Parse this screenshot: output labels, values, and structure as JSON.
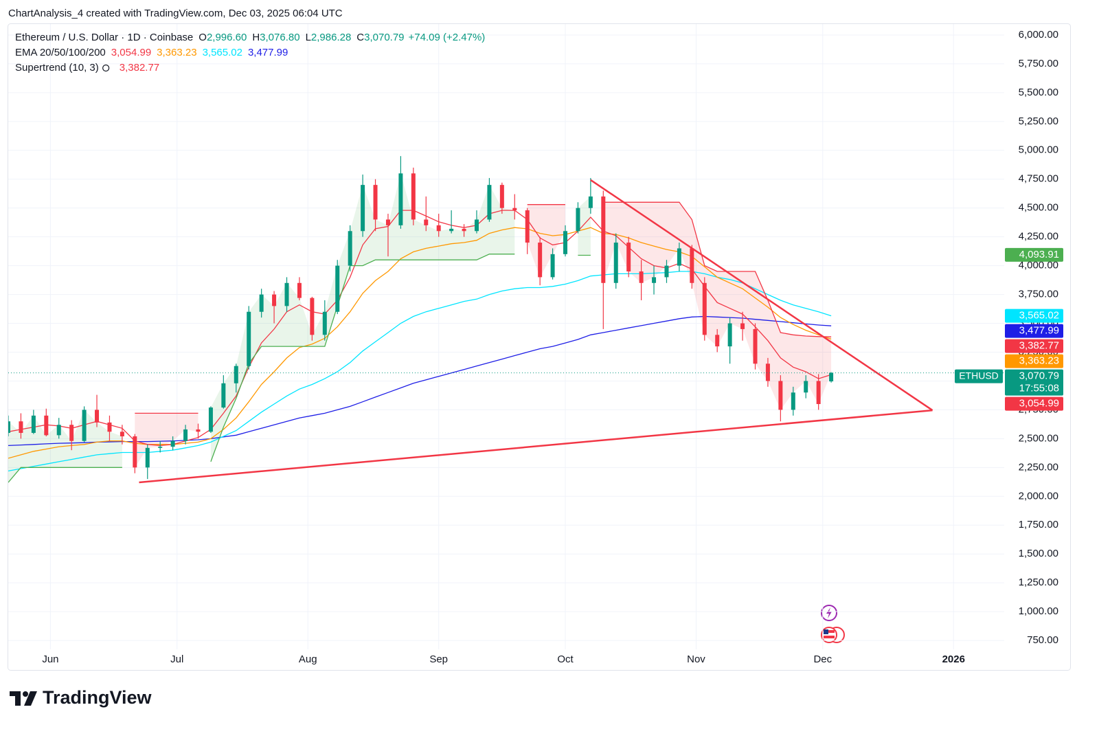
{
  "header": {
    "title": "ChartAnalysis_4 created with TradingView.com, Dec 03, 2025 06:04 UTC"
  },
  "footer": {
    "logo": "TradingView"
  },
  "chart_data": {
    "type": "candlestick",
    "legend": {
      "symbol_line": "Ethereum / U.S. Dollar · 1D · Coinbase",
      "ohlc": [
        {
          "key": "O",
          "value": "2,996.60"
        },
        {
          "key": "H",
          "value": "3,076.80"
        },
        {
          "key": "L",
          "value": "2,986.28"
        },
        {
          "key": "C",
          "value": "3,070.79"
        }
      ],
      "change": "+74.09 (+2.47%)"
    },
    "x": [
      "2025-05-22",
      "2025-05-25",
      "2025-05-28",
      "2025-05-31",
      "2025-06-03",
      "2025-06-06",
      "2025-06-09",
      "2025-06-12",
      "2025-06-15",
      "2025-06-18",
      "2025-06-21",
      "2025-06-24",
      "2025-06-27",
      "2025-06-30",
      "2025-07-03",
      "2025-07-06",
      "2025-07-09",
      "2025-07-12",
      "2025-07-15",
      "2025-07-18",
      "2025-07-21",
      "2025-07-24",
      "2025-07-27",
      "2025-07-30",
      "2025-08-02",
      "2025-08-05",
      "2025-08-08",
      "2025-08-11",
      "2025-08-14",
      "2025-08-17",
      "2025-08-20",
      "2025-08-23",
      "2025-08-26",
      "2025-08-29",
      "2025-09-01",
      "2025-09-04",
      "2025-09-07",
      "2025-09-10",
      "2025-09-13",
      "2025-09-16",
      "2025-09-19",
      "2025-09-22",
      "2025-09-25",
      "2025-09-28",
      "2025-10-01",
      "2025-10-04",
      "2025-10-07",
      "2025-10-10",
      "2025-10-13",
      "2025-10-16",
      "2025-10-19",
      "2025-10-22",
      "2025-10-25",
      "2025-10-28",
      "2025-10-31",
      "2025-11-03",
      "2025-11-06",
      "2025-11-09",
      "2025-11-12",
      "2025-11-15",
      "2025-11-18",
      "2025-11-21",
      "2025-11-24",
      "2025-11-27",
      "2025-11-30",
      "2025-12-03"
    ],
    "open": [
      2550,
      2650,
      2550,
      2700,
      2530,
      2620,
      2480,
      2750,
      2640,
      2560,
      2520,
      2250,
      2420,
      2430,
      2480,
      2580,
      2560,
      2770,
      2980,
      3130,
      3600,
      3750,
      3650,
      3850,
      3720,
      3400,
      3600,
      4000,
      4300,
      4700,
      4400,
      4350,
      4800,
      4400,
      4350,
      4300,
      4320,
      4300,
      4400,
      4700,
      4500,
      4480,
      4200,
      3900,
      4100,
      4300,
      4500,
      4600,
      3850,
      4200,
      3950,
      3850,
      3900,
      4000,
      4150,
      3850,
      3400,
      3300,
      3500,
      3450,
      3150,
      3000,
      2750,
      2900,
      3000,
      2996.6
    ],
    "high": [
      2700,
      2720,
      2750,
      2760,
      2680,
      2660,
      2780,
      2880,
      2700,
      2620,
      2540,
      2450,
      2480,
      2520,
      2620,
      2630,
      2780,
      3050,
      3150,
      3650,
      3800,
      3780,
      3900,
      3900,
      3730,
      3700,
      4050,
      4350,
      4790,
      4750,
      4450,
      4950,
      4850,
      4600,
      4450,
      4480,
      4360,
      4480,
      4760,
      4720,
      4620,
      4500,
      4250,
      4150,
      4350,
      4550,
      4760,
      4650,
      4280,
      4250,
      4050,
      4000,
      4050,
      4200,
      4180,
      3900,
      3450,
      3550,
      3600,
      3500,
      3200,
      3050,
      2950,
      3050,
      3060,
      3076.8
    ],
    "low": [
      2520,
      2500,
      2540,
      2520,
      2500,
      2400,
      2470,
      2600,
      2480,
      2450,
      2200,
      2150,
      2380,
      2400,
      2450,
      2500,
      2550,
      2760,
      2900,
      3100,
      3550,
      3500,
      3600,
      3700,
      3350,
      3350,
      3580,
      3950,
      4250,
      4300,
      4080,
      4320,
      4350,
      4300,
      4250,
      4280,
      4250,
      4280,
      4380,
      4450,
      4400,
      4100,
      3830,
      3880,
      4080,
      4280,
      4450,
      3450,
      3800,
      3900,
      3700,
      3750,
      3850,
      3950,
      3800,
      3350,
      3250,
      3150,
      3350,
      3100,
      2950,
      2650,
      2700,
      2850,
      2750,
      2986.28
    ],
    "close": [
      2650,
      2550,
      2700,
      2530,
      2620,
      2480,
      2750,
      2640,
      2560,
      2520,
      2250,
      2420,
      2430,
      2480,
      2580,
      2560,
      2770,
      2980,
      3130,
      3600,
      3750,
      3650,
      3850,
      3720,
      3400,
      3600,
      4000,
      4300,
      4700,
      4400,
      4350,
      4800,
      4400,
      4350,
      4300,
      4320,
      4300,
      4400,
      4700,
      4500,
      4480,
      4200,
      3900,
      4100,
      4300,
      4500,
      4600,
      3850,
      4200,
      3950,
      3850,
      3900,
      4000,
      4150,
      3850,
      3400,
      3300,
      3500,
      3450,
      3150,
      3000,
      2750,
      2900,
      3000,
      2800,
      3070.79
    ],
    "up_color": "#089981",
    "down_color": "#f23645",
    "ema": {
      "label": "EMA 20/50/100/200",
      "lines": [
        {
          "color": "#f23645",
          "value_label": "3,054.99",
          "values": [
            2560,
            2580,
            2600,
            2620,
            2610,
            2590,
            2620,
            2650,
            2620,
            2590,
            2480,
            2450,
            2440,
            2450,
            2480,
            2510,
            2580,
            2720,
            2870,
            3120,
            3330,
            3450,
            3600,
            3660,
            3600,
            3580,
            3700,
            3900,
            4180,
            4320,
            4340,
            4480,
            4480,
            4430,
            4380,
            4350,
            4330,
            4350,
            4450,
            4480,
            4480,
            4400,
            4240,
            4180,
            4200,
            4300,
            4420,
            4300,
            4260,
            4160,
            4060,
            4000,
            3980,
            4020,
            3970,
            3820,
            3680,
            3630,
            3580,
            3470,
            3350,
            3200,
            3120,
            3080,
            3020,
            3054.99
          ]
        },
        {
          "color": "#ff9800",
          "value_label": "3,363.23",
          "values": [
            2330,
            2360,
            2390,
            2410,
            2430,
            2440,
            2450,
            2470,
            2480,
            2480,
            2460,
            2450,
            2450,
            2450,
            2460,
            2470,
            2500,
            2580,
            2680,
            2820,
            2970,
            3080,
            3200,
            3290,
            3320,
            3370,
            3470,
            3600,
            3760,
            3870,
            3950,
            4060,
            4120,
            4150,
            4170,
            4190,
            4200,
            4220,
            4280,
            4310,
            4330,
            4320,
            4280,
            4260,
            4270,
            4300,
            4330,
            4280,
            4270,
            4240,
            4200,
            4170,
            4140,
            4120,
            4080,
            3990,
            3900,
            3850,
            3800,
            3720,
            3640,
            3550,
            3490,
            3440,
            3400,
            3363.23
          ]
        },
        {
          "color": "#00e5ff",
          "value_label": "3,565.02",
          "values": [
            2220,
            2240,
            2260,
            2280,
            2300,
            2320,
            2340,
            2360,
            2370,
            2380,
            2380,
            2380,
            2390,
            2400,
            2420,
            2440,
            2470,
            2520,
            2570,
            2650,
            2730,
            2800,
            2870,
            2930,
            2970,
            3020,
            3080,
            3160,
            3260,
            3340,
            3420,
            3500,
            3560,
            3600,
            3630,
            3660,
            3690,
            3710,
            3750,
            3780,
            3800,
            3810,
            3810,
            3820,
            3840,
            3870,
            3910,
            3920,
            3930,
            3930,
            3930,
            3935,
            3940,
            3950,
            3950,
            3930,
            3900,
            3880,
            3850,
            3800,
            3750,
            3700,
            3660,
            3630,
            3600,
            3565.02
          ]
        },
        {
          "color": "#1e1ee6",
          "value_label": "3,477.99",
          "values": [
            2440,
            2445,
            2450,
            2455,
            2460,
            2462,
            2465,
            2470,
            2472,
            2475,
            2475,
            2475,
            2478,
            2480,
            2485,
            2490,
            2500,
            2515,
            2530,
            2560,
            2590,
            2620,
            2650,
            2680,
            2700,
            2720,
            2750,
            2780,
            2820,
            2860,
            2900,
            2940,
            2980,
            3010,
            3040,
            3070,
            3100,
            3130,
            3160,
            3190,
            3220,
            3250,
            3280,
            3300,
            3330,
            3360,
            3400,
            3420,
            3440,
            3460,
            3480,
            3500,
            3520,
            3540,
            3555,
            3560,
            3555,
            3550,
            3545,
            3535,
            3525,
            3515,
            3505,
            3495,
            3485,
            3477.99
          ]
        }
      ]
    },
    "supertrend": {
      "label": "Supertrend (10, 3)",
      "value_label": "3,382.77",
      "up": {
        "color": "#4caf50",
        "values": [
          2120,
          2250,
          2250,
          2250,
          2250,
          2250,
          2250,
          2250,
          2250,
          2250,
          null,
          null,
          null,
          null,
          null,
          null,
          2300,
          2600,
          2850,
          3150,
          3300,
          3300,
          3300,
          3300,
          3300,
          3300,
          3650,
          4000,
          4000,
          4050,
          4050,
          4050,
          4050,
          4050,
          4050,
          4050,
          4050,
          4050,
          4100,
          4100,
          4100,
          null,
          null,
          null,
          null,
          4090,
          4090,
          null,
          null,
          null,
          null,
          null,
          null,
          null,
          null,
          null,
          null,
          null,
          null,
          null,
          null,
          null,
          null,
          null,
          null,
          null
        ]
      },
      "down": {
        "color": "#f23645",
        "values": [
          null,
          null,
          null,
          null,
          null,
          null,
          null,
          null,
          null,
          null,
          2720,
          2720,
          2720,
          2720,
          2720,
          2720,
          null,
          null,
          null,
          null,
          null,
          null,
          null,
          null,
          null,
          null,
          null,
          null,
          null,
          null,
          null,
          null,
          null,
          null,
          null,
          null,
          null,
          null,
          null,
          null,
          null,
          4530,
          4530,
          4530,
          4530,
          null,
          null,
          4550,
          4550,
          4550,
          4550,
          4550,
          4550,
          4550,
          4400,
          4000,
          3950,
          3950,
          3950,
          3950,
          3700,
          3420,
          3400,
          3390,
          3385,
          3382.77
        ]
      }
    },
    "trendlines": [
      {
        "color": "#f23645",
        "x": [
          "2025-06-22",
          "2025-12-27"
        ],
        "y": [
          2121,
          2746
        ]
      },
      {
        "color": "#f23645",
        "x": [
          "2025-10-07",
          "2025-12-27"
        ],
        "y": [
          4743,
          2746
        ]
      }
    ],
    "price_labels": [
      {
        "value": 4093.91,
        "label": "4,093.91",
        "color": "#4caf50"
      }
    ],
    "last_price": {
      "symbol": "ETHUSD",
      "countdown": "17:55:08",
      "color": "#089981"
    },
    "xlim": [
      "2025-05-22",
      "2026-01-13"
    ],
    "xticks": [
      {
        "value": "2025-06-01",
        "label": "Jun"
      },
      {
        "value": "2025-07-01",
        "label": "Jul"
      },
      {
        "value": "2025-08-01",
        "label": "Aug"
      },
      {
        "value": "2025-09-01",
        "label": "Sep"
      },
      {
        "value": "2025-10-01",
        "label": "Oct"
      },
      {
        "value": "2025-11-01",
        "label": "Nov"
      },
      {
        "value": "2025-12-01",
        "label": "Dec"
      },
      {
        "value": "2026-01-01",
        "label": "2026"
      }
    ],
    "ylim": [
      673,
      6095
    ],
    "yticks": [
      {
        "value": 750,
        "label": "750.00"
      },
      {
        "value": 1000,
        "label": "1,000.00"
      },
      {
        "value": 1250,
        "label": "1,250.00"
      },
      {
        "value": 1500,
        "label": "1,500.00"
      },
      {
        "value": 1750,
        "label": "1,750.00"
      },
      {
        "value": 2000,
        "label": "2,000.00"
      },
      {
        "value": 2250,
        "label": "2,250.00"
      },
      {
        "value": 2500,
        "label": "2,500.00"
      },
      {
        "value": 2750,
        "label": "2,750.00"
      },
      {
        "value": 3000,
        "label": "3,000.00"
      },
      {
        "value": 3250,
        "label": "3,250.00"
      },
      {
        "value": 3500,
        "label": "3,500.00"
      },
      {
        "value": 3750,
        "label": "3,750.00"
      },
      {
        "value": 4000,
        "label": "4,000.00"
      },
      {
        "value": 4250,
        "label": "4,250.00"
      },
      {
        "value": 4500,
        "label": "4,500.00"
      },
      {
        "value": 4750,
        "label": "4,750.00"
      },
      {
        "value": 5000,
        "label": "5,000.00"
      },
      {
        "value": 5250,
        "label": "5,250.00"
      },
      {
        "value": 5500,
        "label": "5,500.00"
      },
      {
        "value": 5750,
        "label": "5,750.00"
      },
      {
        "value": 6000,
        "label": "6,000.00"
      }
    ],
    "grid": true
  }
}
